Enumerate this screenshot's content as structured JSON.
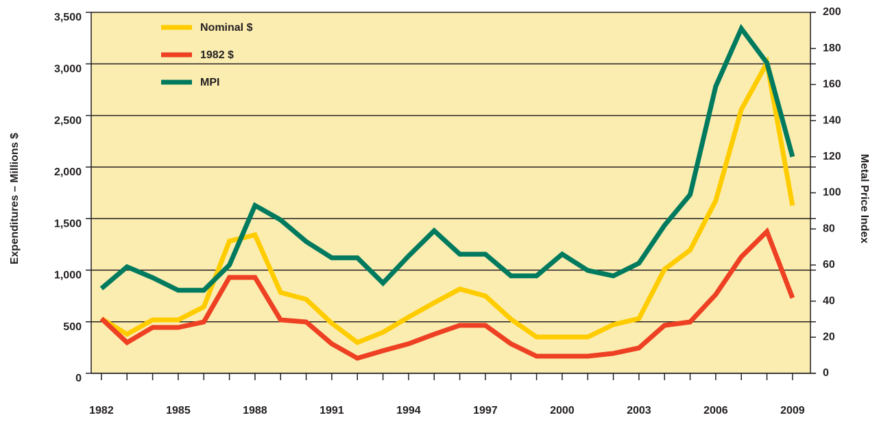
{
  "chart_data": {
    "type": "line",
    "y_label": "Expenditures – Millions $",
    "y2_label": "Metal Price Index",
    "x": [
      1982,
      1983,
      1984,
      1985,
      1986,
      1987,
      1988,
      1989,
      1990,
      1991,
      1992,
      1993,
      1994,
      1995,
      1996,
      1997,
      1998,
      1999,
      2000,
      2001,
      2002,
      2003,
      2004,
      2005,
      2006,
      2007,
      2008,
      2009
    ],
    "xlim": [
      1981.6,
      2009.7
    ],
    "xticks": [
      1982,
      1985,
      1988,
      1991,
      1994,
      1997,
      2000,
      2003,
      2006,
      2009
    ],
    "ylim": [
      0,
      3500
    ],
    "yticks": [
      0,
      500,
      {
        "value": 1000,
        "label": "1,000"
      },
      {
        "value": 1500,
        "label": "1,500"
      },
      {
        "value": 2000,
        "label": "2,000"
      },
      {
        "value": 2500,
        "label": "2,500"
      },
      {
        "value": 3000,
        "label": "3,000"
      },
      {
        "value": 3500,
        "label": "3,500"
      }
    ],
    "y2lim": [
      0,
      200
    ],
    "y2ticks": [
      0,
      20,
      40,
      60,
      80,
      100,
      120,
      140,
      160,
      180,
      200
    ],
    "grid": true,
    "legend": "top-left",
    "series": [
      {
        "name": "Nominal $",
        "color": "#ffcc00",
        "values": [
          531,
          379,
          518,
          518,
          644,
          1282,
          1342,
          784,
          717,
          485,
          299,
          398,
          545,
          684,
          817,
          750,
          525,
          352,
          352,
          352,
          472,
          531,
          1009,
          1195,
          1674,
          2557,
          3009,
          1627
        ]
      },
      {
        "name": "1982 $",
        "color": "#ee4023",
        "values": [
          531,
          299,
          445,
          445,
          498,
          930,
          930,
          518,
          498,
          286,
          146,
          219,
          286,
          379,
          465,
          465,
          286,
          166,
          166,
          166,
          193,
          246,
          465,
          498,
          764,
          1129,
          1375,
          731
        ]
      },
      {
        "name": "MPI",
        "color": "#007a5e",
        "axis": "y2",
        "values": [
          47,
          59,
          53,
          46,
          46,
          60,
          93,
          85,
          73,
          64,
          64,
          50,
          65,
          79,
          66,
          66,
          54,
          54,
          66,
          57,
          54,
          61,
          82,
          99,
          159,
          191,
          172,
          120
        ]
      }
    ]
  }
}
